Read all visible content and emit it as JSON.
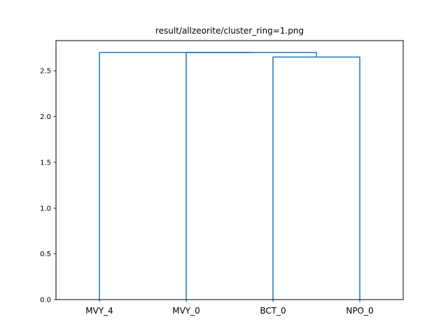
{
  "chart_data": {
    "type": "dendrogram",
    "title": "result/allzeorite/cluster_ring=1.png",
    "xlabel": "",
    "ylabel": "",
    "leaves": [
      "MVY_4",
      "MVY_0",
      "BCT_0",
      "NPO_0"
    ],
    "yticks": [
      "0.0",
      "0.5",
      "1.0",
      "1.5",
      "2.0",
      "2.5"
    ],
    "ytick_values": [
      0.0,
      0.5,
      1.0,
      1.5,
      2.0,
      2.5
    ],
    "ylim": [
      0,
      2.83
    ],
    "grid": false,
    "link_color": "#1f77b4",
    "links": [
      {
        "left_leaf": "BCT_0",
        "right_leaf": "NPO_0",
        "height": 2.65,
        "left_height": 0,
        "right_height": 0
      },
      {
        "left_leaf": "MVY_0",
        "right_cluster": [
          "BCT_0",
          "NPO_0"
        ],
        "height": 2.7,
        "left_height": 0,
        "right_height": 2.65
      },
      {
        "left_leaf": "MVY_4",
        "right_cluster": [
          "MVY_0",
          "BCT_0",
          "NPO_0"
        ],
        "height": 2.7,
        "left_height": 0,
        "right_height": 2.7
      }
    ]
  }
}
